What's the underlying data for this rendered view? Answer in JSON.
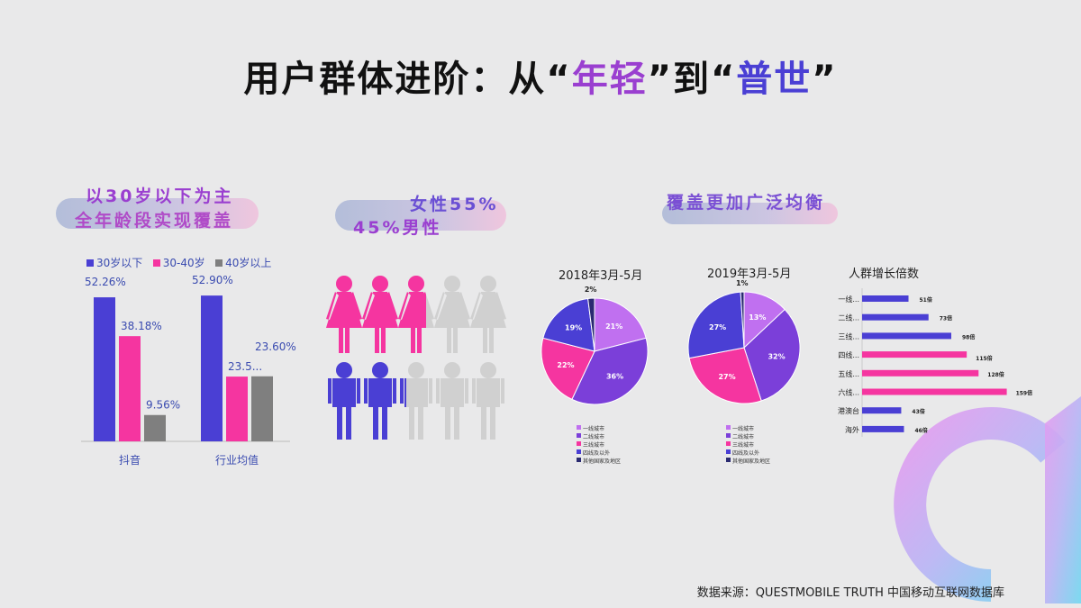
{
  "title": {
    "pre": "用户群体进阶：从“",
    "em1": "年轻",
    "mid": "”到“",
    "em2": "普世",
    "post": "”"
  },
  "section1": {
    "line1": "以30岁以下为主",
    "line2": "全年龄段实现覆盖"
  },
  "section2": {
    "line1": "女性55%",
    "line2": "45%男性"
  },
  "section3": {
    "heading": "覆盖更加广泛均衡"
  },
  "source": "数据来源：QUESTMOBILE TRUTH 中国移动互联网数据库",
  "colors": {
    "blue": "#4a3fd4",
    "pink": "#f535a0",
    "gray": "#7f7f7f",
    "lightpurple": "#c070f0",
    "purple": "#7b3fd9",
    "navy": "#2a2a70"
  },
  "chart_data": [
    {
      "type": "bar",
      "categories": [
        "抖音",
        "行业均值"
      ],
      "series": [
        {
          "name": "30岁以下",
          "values": [
            52.26,
            52.9
          ],
          "labels": [
            "52.26%",
            "52.90%"
          ]
        },
        {
          "name": "30-40岁",
          "values": [
            38.18,
            23.5
          ],
          "labels": [
            "38.18%",
            "23.5..."
          ]
        },
        {
          "name": "40岁以上",
          "values": [
            9.56,
            23.6
          ],
          "labels": [
            "9.56%",
            "23.60%"
          ]
        }
      ],
      "legend": "top"
    },
    {
      "type": "pictogram",
      "female_share": 55,
      "male_share": 45,
      "icons_per_row": 5
    },
    {
      "type": "pie",
      "title": "2018年3月-5月",
      "labels": [
        "一线城市",
        "二线城市",
        "三线城市",
        "四线及以外",
        "其他国家及地区"
      ],
      "values": [
        21,
        36,
        22,
        19,
        2
      ]
    },
    {
      "type": "pie",
      "title": "2019年3月-5月",
      "labels": [
        "一线城市",
        "二线城市",
        "三线城市",
        "四线及以外",
        "其他国家及地区"
      ],
      "values": [
        13,
        32,
        27,
        27,
        1
      ]
    },
    {
      "type": "bar",
      "orientation": "horizontal",
      "title": "人群增长倍数",
      "categories": [
        "一线...",
        "二线...",
        "三线...",
        "四线...",
        "五线...",
        "六线...",
        "港澳台",
        "海外"
      ],
      "values": [
        51,
        73,
        98,
        115,
        128,
        159,
        43,
        46
      ],
      "labels": [
        "51倍",
        "73倍",
        "98倍",
        "115倍",
        "128倍",
        "159倍",
        "43倍",
        "46倍"
      ]
    }
  ]
}
